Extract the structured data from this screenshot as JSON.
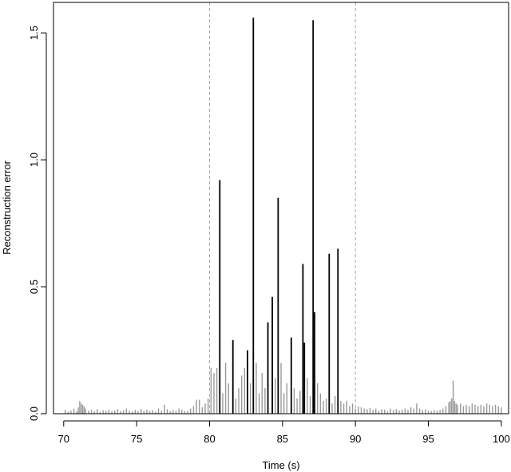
{
  "chart_data": {
    "type": "bar",
    "title": "",
    "xlabel": "Time (s)",
    "ylabel": "Reconstruction error",
    "xlim": [
      69.3,
      100.5
    ],
    "ylim": [
      0.0,
      1.62
    ],
    "xticks": [
      70,
      75,
      80,
      85,
      90,
      95,
      100
    ],
    "xtick_labels": [
      "70",
      "75",
      "80",
      "85",
      "90",
      "95",
      "100"
    ],
    "yticks": [
      0.0,
      0.5,
      1.0,
      1.5
    ],
    "ytick_labels": [
      "0.0",
      "0.5",
      "1.0",
      "1.5"
    ],
    "reference_lines_x": [
      80,
      90
    ],
    "grid": false,
    "colors": {
      "background": "#FFFFFF",
      "axis": "#000000",
      "baseline_bars": "#999999",
      "highlight_bars": "#000000",
      "reference_line": "#AAAAAA"
    },
    "series": [
      {
        "color": "#000000",
        "x": [
          80.7,
          81.6,
          82.6,
          83.0,
          84.0,
          84.3,
          84.7,
          85.6,
          86.4,
          86.5,
          87.1,
          87.2,
          88.2,
          88.8
        ],
        "values": [
          0.92,
          0.29,
          0.25,
          1.56,
          0.36,
          0.46,
          0.85,
          0.3,
          0.59,
          0.28,
          1.55,
          0.4,
          0.63,
          0.65
        ]
      },
      {
        "color": "#999999",
        "x": [
          70.1,
          70.3,
          70.5,
          70.7,
          70.9,
          71.0,
          71.1,
          71.2,
          71.3,
          71.4,
          71.5,
          71.7,
          71.9,
          72.1,
          72.3,
          72.5,
          72.7,
          72.9,
          73.1,
          73.3,
          73.5,
          73.7,
          73.9,
          74.1,
          74.3,
          74.5,
          74.7,
          74.9,
          75.1,
          75.3,
          75.5,
          75.7,
          75.9,
          76.1,
          76.3,
          76.5,
          76.7,
          76.9,
          77.1,
          77.3,
          77.5,
          77.7,
          77.9,
          78.1,
          78.3,
          78.5,
          78.7,
          78.9,
          79.1,
          79.3,
          79.5,
          79.7,
          79.9,
          80.1,
          80.3,
          80.5,
          80.9,
          81.1,
          81.3,
          81.8,
          82.0,
          82.2,
          82.4,
          82.8,
          83.2,
          83.4,
          83.6,
          83.8,
          84.5,
          84.9,
          85.1,
          85.3,
          85.8,
          86.0,
          86.2,
          86.7,
          86.9,
          87.4,
          87.6,
          87.8,
          88.0,
          88.4,
          88.6,
          89.0,
          89.2,
          89.4,
          89.6,
          89.8,
          90.0,
          90.2,
          90.4,
          90.6,
          90.8,
          91.0,
          91.2,
          91.4,
          91.6,
          91.8,
          92.0,
          92.2,
          92.4,
          92.6,
          92.8,
          93.0,
          93.2,
          93.4,
          93.6,
          93.8,
          94.0,
          94.2,
          94.4,
          94.6,
          94.8,
          95.0,
          95.2,
          95.4,
          95.6,
          95.8,
          96.0,
          96.2,
          96.4,
          96.5,
          96.6,
          96.7,
          96.8,
          96.9,
          97.0,
          97.2,
          97.4,
          97.6,
          97.8,
          98.0,
          98.2,
          98.4,
          98.6,
          98.8,
          99.0,
          99.2,
          99.4,
          99.6,
          99.8,
          100.0
        ],
        "values": [
          0.015,
          0.008,
          0.012,
          0.02,
          0.01,
          0.025,
          0.05,
          0.04,
          0.035,
          0.028,
          0.02,
          0.012,
          0.015,
          0.01,
          0.018,
          0.008,
          0.014,
          0.01,
          0.016,
          0.009,
          0.012,
          0.018,
          0.01,
          0.014,
          0.02,
          0.012,
          0.009,
          0.015,
          0.01,
          0.018,
          0.012,
          0.016,
          0.01,
          0.014,
          0.008,
          0.02,
          0.012,
          0.035,
          0.018,
          0.01,
          0.014,
          0.012,
          0.02,
          0.016,
          0.01,
          0.012,
          0.02,
          0.03,
          0.055,
          0.055,
          0.025,
          0.04,
          0.06,
          0.18,
          0.16,
          0.18,
          0.08,
          0.2,
          0.12,
          0.06,
          0.1,
          0.15,
          0.18,
          0.12,
          0.2,
          0.08,
          0.16,
          0.1,
          0.14,
          0.2,
          0.08,
          0.12,
          0.1,
          0.06,
          0.09,
          0.14,
          0.07,
          0.12,
          0.08,
          0.05,
          0.06,
          0.04,
          0.07,
          0.05,
          0.04,
          0.05,
          0.03,
          0.04,
          0.02,
          0.03,
          0.025,
          0.02,
          0.018,
          0.022,
          0.015,
          0.02,
          0.012,
          0.018,
          0.016,
          0.01,
          0.02,
          0.014,
          0.018,
          0.012,
          0.016,
          0.02,
          0.015,
          0.025,
          0.02,
          0.04,
          0.02,
          0.015,
          0.018,
          0.012,
          0.01,
          0.014,
          0.012,
          0.015,
          0.02,
          0.03,
          0.045,
          0.05,
          0.06,
          0.13,
          0.05,
          0.04,
          0.035,
          0.04,
          0.03,
          0.035,
          0.03,
          0.04,
          0.035,
          0.03,
          0.035,
          0.03,
          0.04,
          0.035,
          0.03,
          0.035,
          0.03,
          0.025
        ]
      }
    ]
  }
}
